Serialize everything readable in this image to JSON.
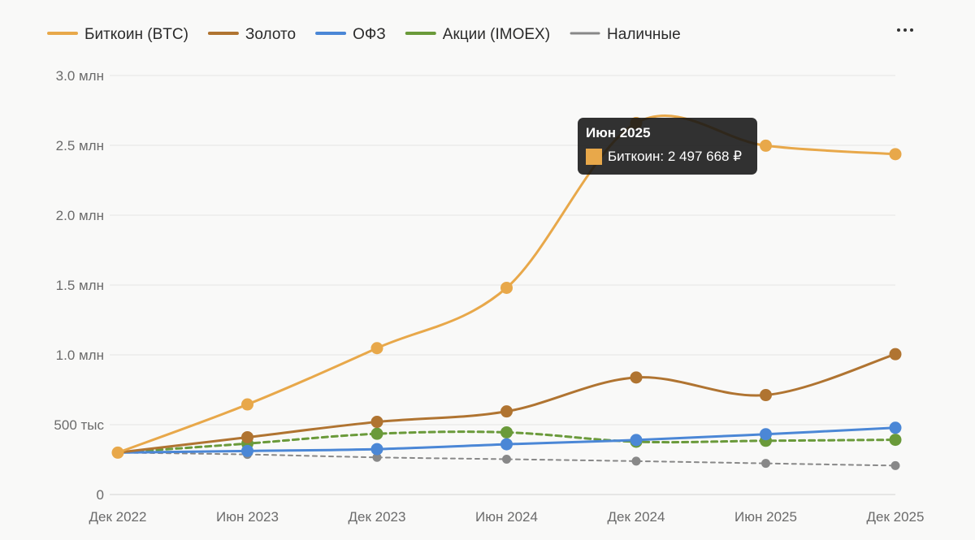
{
  "chart_data": {
    "type": "line",
    "categories": [
      "Дек 2022",
      "Июн 2023",
      "Дек 2023",
      "Июн 2024",
      "Дек 2024",
      "Июн 2025",
      "Дек 2025"
    ],
    "y_ticks": [
      {
        "value": 0,
        "label": "0"
      },
      {
        "value": 500000,
        "label": "500 тыс"
      },
      {
        "value": 1000000,
        "label": "1.0 млн"
      },
      {
        "value": 1500000,
        "label": "1.5 млн"
      },
      {
        "value": 2000000,
        "label": "2.0 млн"
      },
      {
        "value": 2500000,
        "label": "2.5 млн"
      },
      {
        "value": 3000000,
        "label": "3.0 млн"
      }
    ],
    "ylim": [
      0,
      3000000
    ],
    "grid": true,
    "legend_position": "top-left",
    "series": [
      {
        "name": "Биткоин (BTC)",
        "color": "#e8a84a",
        "dash": "solid",
        "values": [
          300000,
          645000,
          1048000,
          1480000,
          2660000,
          2497668,
          2437000
        ]
      },
      {
        "name": "Золото",
        "color": "#b07431",
        "dash": "solid",
        "values": [
          300000,
          410000,
          520000,
          595000,
          838000,
          712000,
          1005000
        ]
      },
      {
        "name": "ОФЗ",
        "color": "#4b87d6",
        "dash": "solid",
        "values": [
          300000,
          312000,
          325000,
          360000,
          390000,
          432000,
          478000
        ]
      },
      {
        "name": "Акции (IMOEX)",
        "color": "#6a9a3a",
        "dash": "dashed",
        "values": [
          300000,
          365000,
          435000,
          445000,
          378000,
          385000,
          392000
        ]
      },
      {
        "name": "Наличные",
        "color": "#888888",
        "dash": "dotted",
        "values": [
          300000,
          287000,
          266000,
          253000,
          239000,
          223000,
          207000
        ]
      }
    ]
  },
  "tooltip": {
    "title": "Июн 2025",
    "label": "Биткоин: 2 497 668 ₽",
    "color": "#e8a84a",
    "series_index": 0,
    "category_index": 5
  },
  "menu": {
    "icon": "more-horizontal-icon"
  }
}
